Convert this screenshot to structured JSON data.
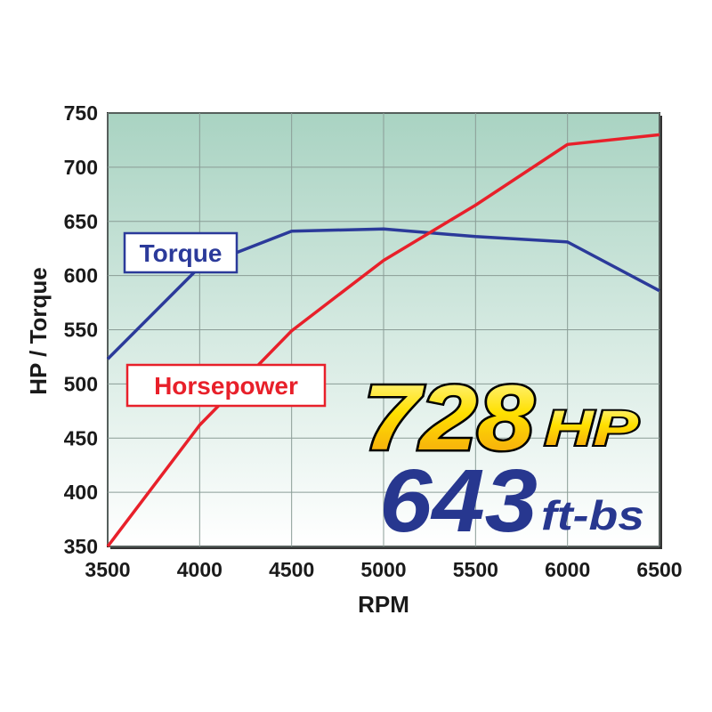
{
  "chart_data": {
    "type": "line",
    "x_label": "RPM",
    "y_label": "HP / Torque",
    "x": [
      3500,
      4000,
      4500,
      5000,
      5500,
      6000,
      6500
    ],
    "series": [
      {
        "name": "Torque",
        "color": "#2b3a9a",
        "values": [
          523,
          608,
          641,
          643,
          636,
          631,
          586
        ]
      },
      {
        "name": "Horsepower",
        "color": "#e8202a",
        "values": [
          350,
          462,
          549,
          614,
          665,
          721,
          730
        ]
      }
    ],
    "xlim": [
      3500,
      6500
    ],
    "xticks": [
      3500,
      4000,
      4500,
      5000,
      5500,
      6000,
      6500
    ],
    "ylim": [
      350,
      750
    ],
    "yticks": [
      350,
      400,
      450,
      500,
      550,
      600,
      650,
      700,
      750
    ],
    "grid": true,
    "annotations": [
      "728",
      "HP",
      "643",
      "ft-bs"
    ]
  }
}
